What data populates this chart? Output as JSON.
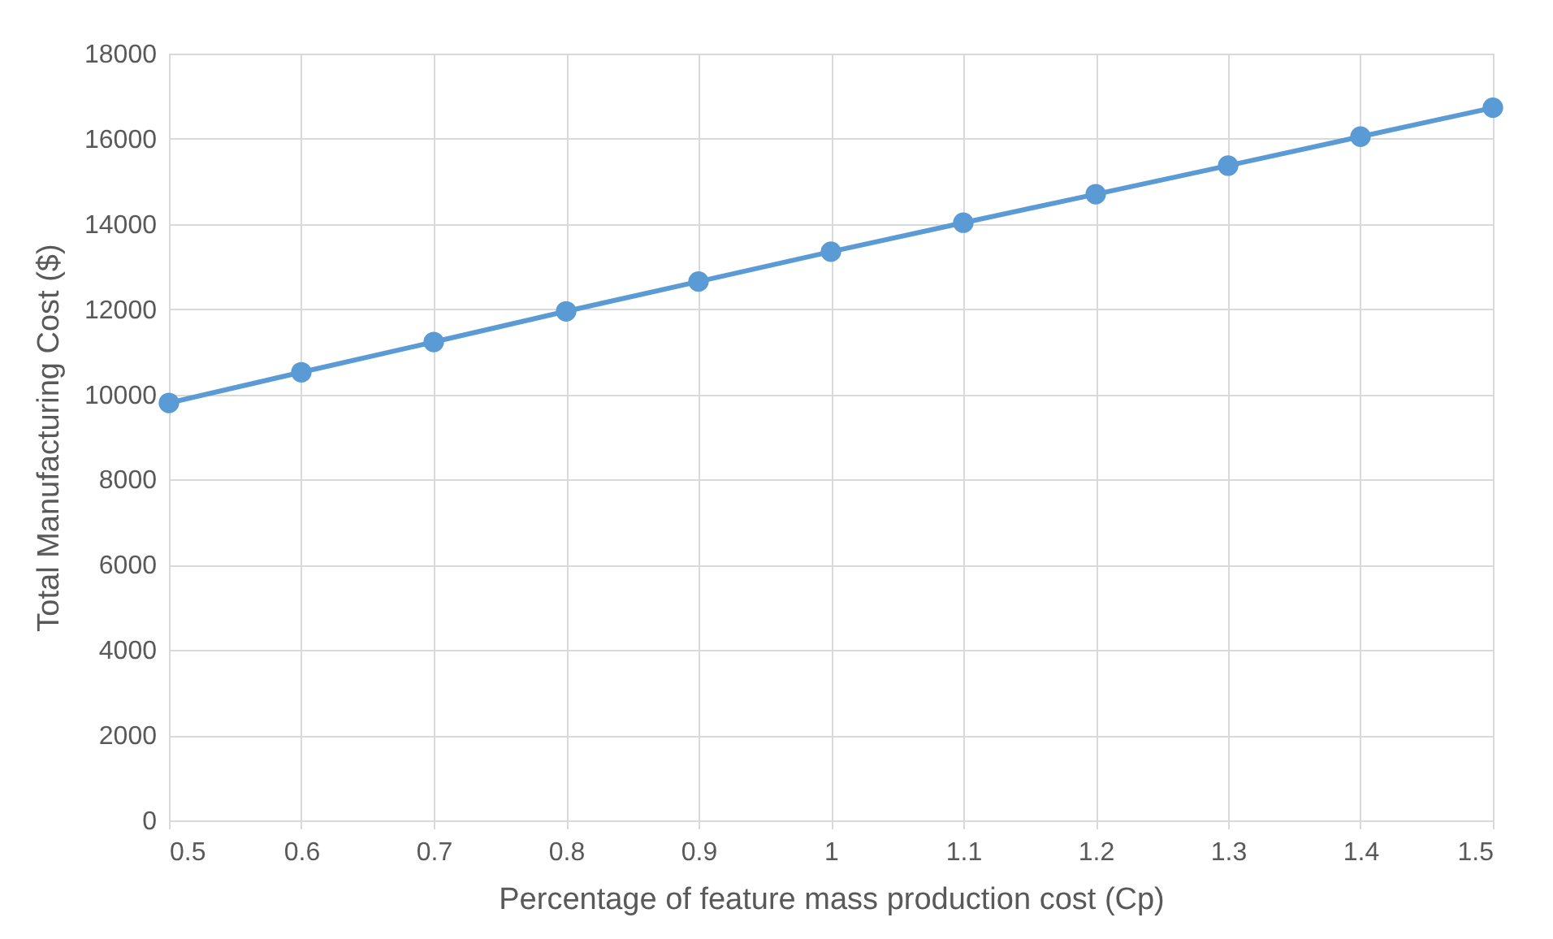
{
  "chart_data": {
    "type": "line",
    "xlabel": "Percentage of feature mass production cost (Cp)",
    "ylabel": "Total Manufacturing Cost ($)",
    "x": [
      0.5,
      0.6,
      0.7,
      0.8,
      0.9,
      1,
      1.1,
      1.2,
      1.3,
      1.4,
      1.5
    ],
    "series": [
      {
        "color": "#5b9bd5",
        "values": [
          9800,
          10520,
          11230,
          11950,
          12650,
          13350,
          14030,
          14700,
          15370,
          16050,
          16730
        ]
      }
    ],
    "xlim": [
      0.5,
      1.5
    ],
    "xticks": [
      0.5,
      0.6,
      0.7,
      0.8,
      0.9,
      1,
      1.1,
      1.2,
      1.3,
      1.4,
      1.5
    ],
    "ylim": [
      0,
      18000
    ],
    "yticks": [
      0,
      2000,
      4000,
      6000,
      8000,
      10000,
      12000,
      14000,
      16000,
      18000
    ],
    "grid": true,
    "marker": "circle",
    "line_style": "solid"
  }
}
